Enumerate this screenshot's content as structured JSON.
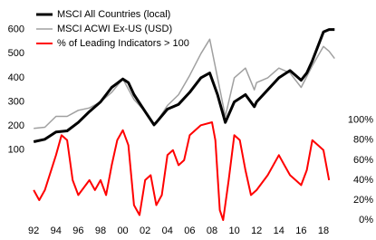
{
  "chart_data": {
    "type": "line",
    "xlim": [
      1991.5,
      2019.3
    ],
    "xticks": [
      {
        "value": 1992,
        "label": "92"
      },
      {
        "value": 1994,
        "label": "94"
      },
      {
        "value": 1996,
        "label": "96"
      },
      {
        "value": 1998,
        "label": "98"
      },
      {
        "value": 2000,
        "label": "00"
      },
      {
        "value": 2002,
        "label": "02"
      },
      {
        "value": 2004,
        "label": "04"
      },
      {
        "value": 2006,
        "label": "06"
      },
      {
        "value": 2008,
        "label": "08"
      },
      {
        "value": 2010,
        "label": "10"
      },
      {
        "value": 2012,
        "label": "12"
      },
      {
        "value": 2014,
        "label": "14"
      },
      {
        "value": 2016,
        "label": "16"
      },
      {
        "value": 2018,
        "label": "18"
      }
    ],
    "ylim": [
      -190,
      700
    ],
    "yticks": [
      100,
      200,
      300,
      400,
      500,
      600
    ],
    "y2lim": [
      0,
      215
    ],
    "y2ticks": [
      {
        "value": 0,
        "label": "0%"
      },
      {
        "value": 20,
        "label": "20%"
      },
      {
        "value": 40,
        "label": "40%"
      },
      {
        "value": 60,
        "label": "60%"
      },
      {
        "value": 80,
        "label": "80%"
      },
      {
        "value": 100,
        "label": "100%"
      }
    ],
    "legend": "top-left",
    "series": [
      {
        "name": "MSCI All Countries (local)",
        "color": "#000000",
        "width": 3,
        "x": [
          1992,
          1993,
          1994,
          1995,
          1996,
          1997,
          1998,
          1999,
          2000,
          2000.5,
          2001,
          2002,
          2002.8,
          2003,
          2004,
          2005,
          2006,
          2007,
          2007.8,
          2008.5,
          2009.2,
          2010,
          2011,
          2011.8,
          2012,
          2013,
          2014,
          2015,
          2016,
          2016.5,
          2017,
          2018,
          2018.5,
          2019
        ],
        "values": [
          135,
          145,
          175,
          180,
          215,
          260,
          300,
          360,
          395,
          380,
          330,
          260,
          205,
          215,
          270,
          290,
          340,
          400,
          420,
          330,
          215,
          300,
          330,
          280,
          300,
          350,
          400,
          430,
          390,
          420,
          470,
          590,
          600,
          600
        ]
      },
      {
        "name": "MSCI ACWI Ex-US (USD)",
        "color": "#a0a0a0",
        "width": 1.5,
        "x": [
          1992,
          1993,
          1994,
          1995,
          1996,
          1997,
          1998,
          1999,
          2000,
          2001,
          2002,
          2002.8,
          2004,
          2005,
          2006,
          2007,
          2007.8,
          2008.5,
          2009.2,
          2010,
          2011,
          2011.8,
          2012,
          2013,
          2014,
          2015,
          2016,
          2017,
          2018,
          2018.5,
          2019
        ],
        "values": [
          190,
          195,
          240,
          240,
          265,
          275,
          300,
          340,
          395,
          310,
          260,
          200,
          285,
          330,
          410,
          500,
          560,
          400,
          240,
          400,
          440,
          350,
          380,
          400,
          440,
          420,
          360,
          450,
          530,
          510,
          480
        ]
      },
      {
        "name": "% of Leading Indicators > 100",
        "color": "#ff0000",
        "width": 2,
        "axis": "y2",
        "x": [
          1992,
          1992.5,
          1993,
          1994,
          1994.5,
          1995,
          1995.5,
          1996,
          1997,
          1997.5,
          1998,
          1998.5,
          1999,
          1999.5,
          2000,
          2000.5,
          2001,
          2001.5,
          2002,
          2002.5,
          2003,
          2003.5,
          2004,
          2004.5,
          2005,
          2005.5,
          2006,
          2007,
          2008,
          2008.3,
          2008.7,
          2009,
          2009.5,
          2010,
          2010.5,
          2011,
          2011.5,
          2012,
          2013,
          2014,
          2014.5,
          2015,
          2015.5,
          2016,
          2016.5,
          2017,
          2017.5,
          2018,
          2018.5
        ],
        "values": [
          30,
          20,
          30,
          65,
          85,
          80,
          40,
          25,
          40,
          30,
          40,
          25,
          55,
          80,
          90,
          75,
          15,
          5,
          40,
          45,
          15,
          25,
          65,
          70,
          55,
          60,
          85,
          95,
          98,
          80,
          10,
          0,
          40,
          85,
          80,
          50,
          25,
          30,
          45,
          65,
          55,
          45,
          40,
          35,
          50,
          80,
          75,
          70,
          40
        ]
      }
    ]
  }
}
